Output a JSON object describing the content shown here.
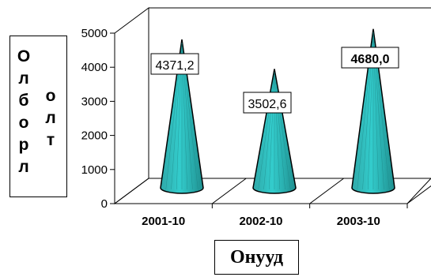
{
  "chart_data": {
    "type": "bar",
    "shape": "cone",
    "categories": [
      "2001-10",
      "2002-10",
      "2003-10"
    ],
    "values": [
      4371.2,
      3502.6,
      4680.0
    ],
    "data_labels": [
      "4371,2",
      "3502,6",
      "4680,0"
    ],
    "ylim": [
      0,
      5000
    ],
    "yticks": [
      0,
      1000,
      2000,
      3000,
      4000,
      5000
    ],
    "ytick_labels": [
      "0",
      "1000",
      "2000",
      "3000",
      "4000",
      "5000"
    ],
    "ylabel": "Олборлолт",
    "ylabel_lines": [
      "Олборл",
      "олт"
    ],
    "xlabel": "Онууд",
    "bar_color": "#33cccc",
    "grid": false
  }
}
